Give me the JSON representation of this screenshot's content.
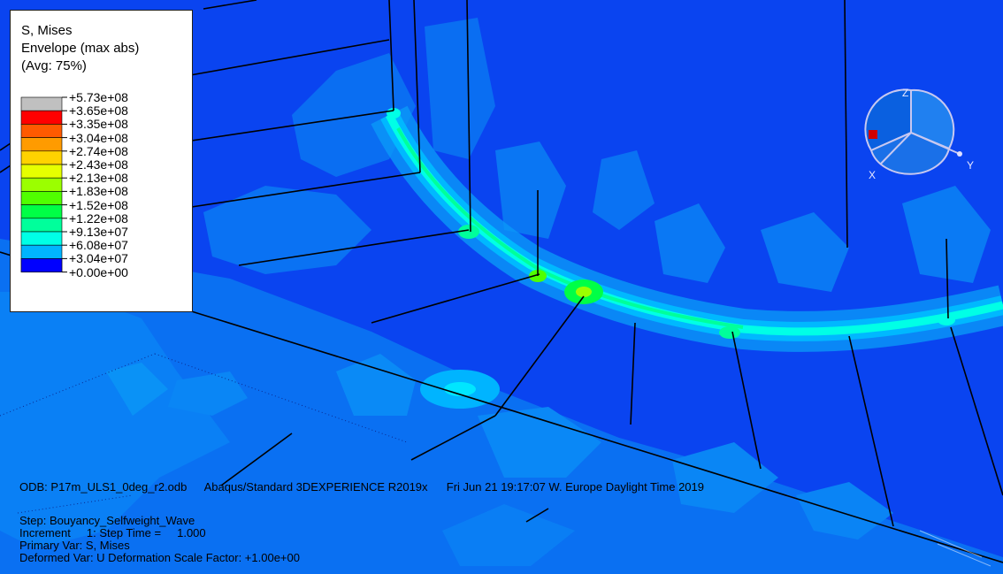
{
  "legend": {
    "title_line1": "S, Mises",
    "title_line2": "Envelope (max abs)",
    "title_line3": "(Avg: 75%)",
    "levels": [
      {
        "label": "+5.73e+08",
        "color": "#c0c0c0"
      },
      {
        "label": "+3.65e+08",
        "color": "#ff0000"
      },
      {
        "label": "+3.35e+08",
        "color": "#ff5a00"
      },
      {
        "label": "+3.04e+08",
        "color": "#ff9b00"
      },
      {
        "label": "+2.74e+08",
        "color": "#ffd200"
      },
      {
        "label": "+2.43e+08",
        "color": "#e6ff00"
      },
      {
        "label": "+2.13e+08",
        "color": "#9bff00"
      },
      {
        "label": "+1.83e+08",
        "color": "#50ff00"
      },
      {
        "label": "+1.52e+08",
        "color": "#00ff46"
      },
      {
        "label": "+1.22e+08",
        "color": "#00ff9b"
      },
      {
        "label": "+9.13e+07",
        "color": "#00ffe6"
      },
      {
        "label": "+6.08e+07",
        "color": "#00b4ff"
      },
      {
        "label": "+3.04e+07",
        "color": "#005aff"
      },
      {
        "label": "+0.00e+00",
        "color": "#0000ff"
      }
    ]
  },
  "triad": {
    "z_label": "Z",
    "x_label": "X",
    "y_label": "Y"
  },
  "info": {
    "odb": "ODB: P17m_ULS1_0deg_r2.odb",
    "solver": "Abaqus/Standard 3DEXPERIENCE R2019x",
    "date": "Fri Jun 21 19:17:07 W. Europe Daylight Time 2019",
    "step": "Step: Bouyancy_Selfweight_Wave",
    "increment": "Increment     1: Step Time =     1.000",
    "primary_var": "Primary Var: S, Mises",
    "deformed_var": "Deformed Var: U   Deformation Scale Factor: +1.00e+00"
  },
  "colors": {
    "background": "#0a44f0",
    "low_stress": "#0a78f5",
    "mid_stress": "#00e6ff",
    "high_stress": "#50ff00"
  }
}
